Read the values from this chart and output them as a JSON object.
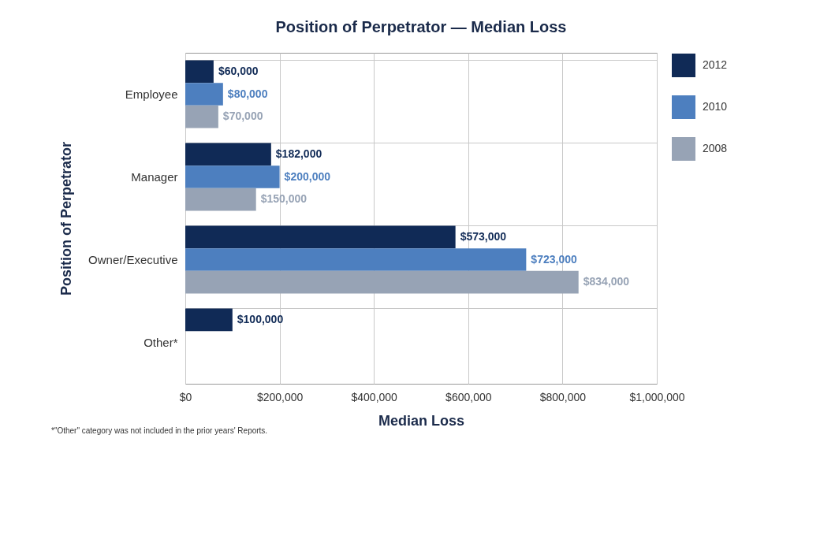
{
  "chart_data": {
    "type": "bar",
    "orientation": "horizontal",
    "title": "Position of Perpetrator — Median Loss",
    "xlabel": "Median Loss",
    "ylabel": "Position of Perpetrator",
    "categories": [
      "Employee",
      "Manager",
      "Owner/Executive",
      "Other*"
    ],
    "series": [
      {
        "name": "2012",
        "color": "#102a56",
        "values": [
          60000,
          182000,
          573000,
          100000
        ],
        "value_labels": [
          "$60,000",
          "$182,000",
          "$573,000",
          "$100,000"
        ]
      },
      {
        "name": "2010",
        "color": "#4d7fbf",
        "values": [
          80000,
          200000,
          723000,
          null
        ],
        "value_labels": [
          "$80,000",
          "$200,000",
          "$723,000",
          null
        ]
      },
      {
        "name": "2008",
        "color": "#97a3b5",
        "values": [
          70000,
          150000,
          834000,
          null
        ],
        "value_labels": [
          "$70,000",
          "$150,000",
          "$834,000",
          null
        ]
      }
    ],
    "xlim": [
      0,
      1000000
    ],
    "xticks": [
      {
        "value": 0,
        "label": "$0"
      },
      {
        "value": 200000,
        "label": "$200,000"
      },
      {
        "value": 400000,
        "label": "$400,000"
      },
      {
        "value": 600000,
        "label": "$600,000"
      },
      {
        "value": 800000,
        "label": "$800,000"
      },
      {
        "value": 1000000,
        "label": "$1,000,000"
      }
    ],
    "grid": true,
    "legend": "right",
    "annotations": [
      "*\"Other\" category was not included in the prior years' Reports."
    ]
  }
}
